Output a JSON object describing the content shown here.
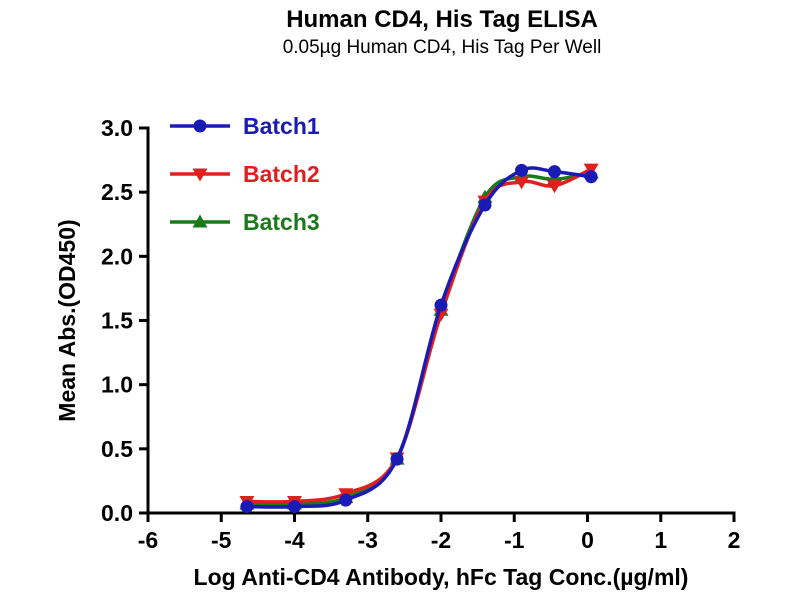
{
  "chart_data": {
    "type": "line",
    "title": "Human CD4, His Tag ELISA",
    "subtitle": "0.05µg Human CD4, His Tag Per Well",
    "xlabel": "Log Anti-CD4 Antibody, hFc Tag Conc.(µg/ml)",
    "ylabel": "Mean Abs.(OD450)",
    "xlim": [
      -6,
      2
    ],
    "ylim": [
      0,
      3
    ],
    "x_ticks": [
      -6,
      -5,
      -4,
      -3,
      -2,
      -1,
      0,
      1,
      2
    ],
    "y_ticks": [
      0,
      0.5,
      1,
      1.5,
      2,
      2.5,
      3
    ],
    "grid": false,
    "legend_position": "top-left",
    "x": [
      -4.65,
      -4.0,
      -3.3,
      -2.6,
      -2.0,
      -1.4,
      -0.9,
      -0.45,
      0.05
    ],
    "series": [
      {
        "name": "Batch1",
        "color": "#1a1ab4",
        "marker": "circle",
        "values": [
          0.05,
          0.05,
          0.1,
          0.42,
          1.62,
          2.4,
          2.67,
          2.66,
          2.62
        ]
      },
      {
        "name": "Batch2",
        "color": "#e02020",
        "marker": "triangle-down",
        "values": [
          0.09,
          0.09,
          0.15,
          0.43,
          1.55,
          2.43,
          2.58,
          2.55,
          2.68
        ]
      },
      {
        "name": "Batch3",
        "color": "#1a7a1a",
        "marker": "triangle-up",
        "values": [
          0.07,
          0.07,
          0.12,
          0.42,
          1.58,
          2.46,
          2.62,
          2.6,
          2.65
        ]
      }
    ]
  }
}
